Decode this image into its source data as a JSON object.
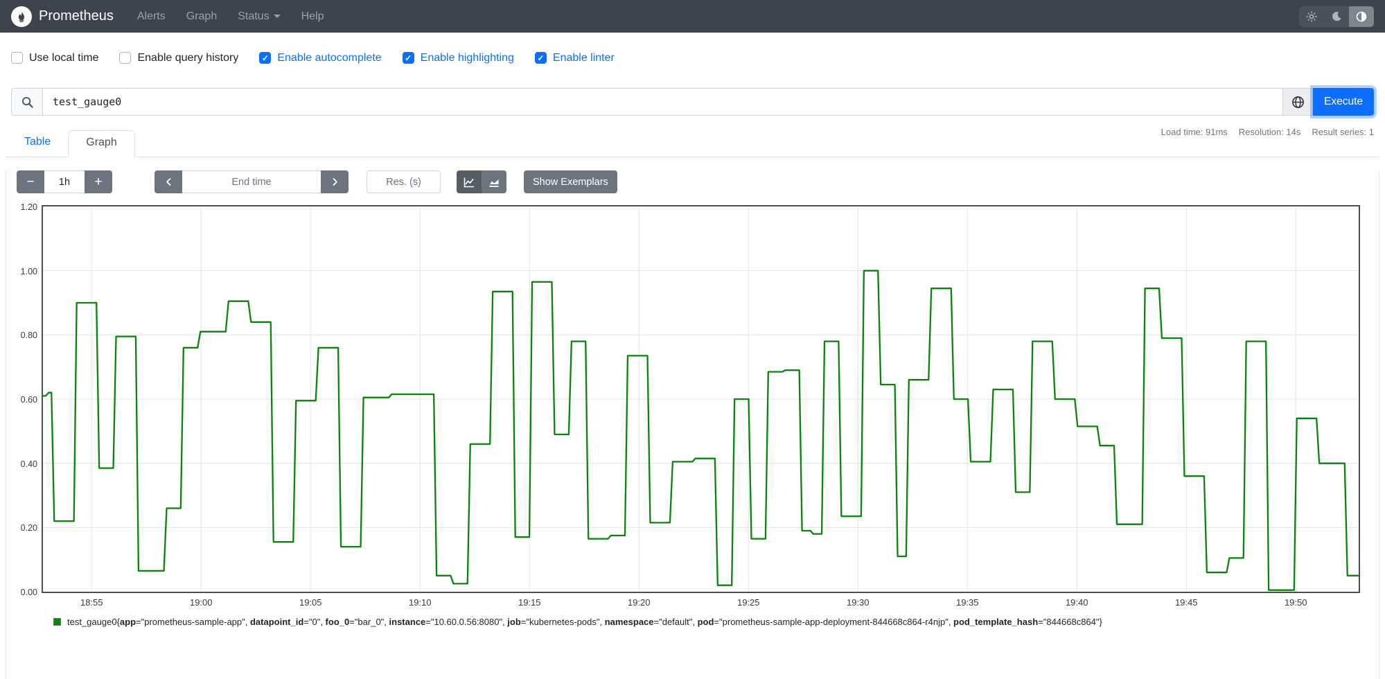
{
  "navbar": {
    "brand": "Prometheus",
    "items": [
      {
        "label": "Alerts",
        "caret": false
      },
      {
        "label": "Graph",
        "caret": false
      },
      {
        "label": "Status",
        "caret": true
      },
      {
        "label": "Help",
        "caret": false
      }
    ],
    "theme_toggle": {
      "options": [
        "light",
        "dark",
        "auto"
      ],
      "active": "auto"
    }
  },
  "options_bar": {
    "checkboxes": [
      {
        "label": "Use local time",
        "checked": false
      },
      {
        "label": "Enable query history",
        "checked": false
      },
      {
        "label": "Enable autocomplete",
        "checked": true
      },
      {
        "label": "Enable highlighting",
        "checked": true
      },
      {
        "label": "Enable linter",
        "checked": true
      }
    ]
  },
  "query_bar": {
    "value": "test_gauge0",
    "execute_label": "Execute"
  },
  "stats": {
    "load_time": "Load time: 91ms",
    "resolution": "Resolution: 14s",
    "result_series": "Result series: 1"
  },
  "tabs": [
    {
      "label": "Table",
      "active": false
    },
    {
      "label": "Graph",
      "active": true
    }
  ],
  "graph_controls": {
    "minus_label": "−",
    "plus_label": "+",
    "range_value": "1h",
    "end_time_placeholder": "End time",
    "res_placeholder": "Res. (s)",
    "show_exemplars_label": "Show Exemplars"
  },
  "chart_data": {
    "type": "line",
    "style": "stepped-gauge",
    "line_color": "#098409",
    "ylim": [
      0,
      1.2
    ],
    "yticks": [
      {
        "v": 0.0,
        "label": "0.00"
      },
      {
        "v": 0.2,
        "label": "0.20"
      },
      {
        "v": 0.4,
        "label": "0.40"
      },
      {
        "v": 0.6,
        "label": "0.60"
      },
      {
        "v": 0.8,
        "label": "0.80"
      },
      {
        "v": 1.0,
        "label": "1.00"
      },
      {
        "v": 1.2,
        "label": "1.20"
      }
    ],
    "xticks": [
      "18:55",
      "19:00",
      "19:05",
      "19:10",
      "19:15",
      "19:20",
      "19:25",
      "19:30",
      "19:35",
      "19:40",
      "19:45",
      "19:50"
    ],
    "xtick_start_frac": 0.037,
    "xtick_step_frac": 0.0832,
    "grid": true,
    "sample_interval_seconds": 14,
    "series": [
      {
        "name": "test_gauge0",
        "segments_value_samples": [
          [
            0.61,
            1
          ],
          [
            0.62,
            1
          ],
          [
            0.22,
            4
          ],
          [
            0.9,
            4
          ],
          [
            0.385,
            3
          ],
          [
            0.795,
            4
          ],
          [
            0.065,
            5
          ],
          [
            0.26,
            3
          ],
          [
            0.76,
            3
          ],
          [
            0.81,
            5
          ],
          [
            0.905,
            4
          ],
          [
            0.84,
            4
          ],
          [
            0.155,
            4
          ],
          [
            0.595,
            4
          ],
          [
            0.76,
            4
          ],
          [
            0.14,
            4
          ],
          [
            0.605,
            5
          ],
          [
            0.615,
            8
          ],
          [
            0.05,
            3
          ],
          [
            0.025,
            3
          ],
          [
            0.46,
            4
          ],
          [
            0.935,
            4
          ],
          [
            0.17,
            3
          ],
          [
            0.965,
            4
          ],
          [
            0.49,
            3
          ],
          [
            0.78,
            3
          ],
          [
            0.165,
            4
          ],
          [
            0.175,
            3
          ],
          [
            0.735,
            4
          ],
          [
            0.215,
            4
          ],
          [
            0.405,
            4
          ],
          [
            0.415,
            4
          ],
          [
            0.02,
            3
          ],
          [
            0.6,
            3
          ],
          [
            0.165,
            3
          ],
          [
            0.685,
            3
          ],
          [
            0.69,
            3
          ],
          [
            0.19,
            2
          ],
          [
            0.18,
            2
          ],
          [
            0.78,
            3
          ],
          [
            0.235,
            4
          ],
          [
            1.0,
            3
          ],
          [
            0.645,
            3
          ],
          [
            0.11,
            2
          ],
          [
            0.66,
            4
          ],
          [
            0.945,
            4
          ],
          [
            0.6,
            3
          ],
          [
            0.405,
            4
          ],
          [
            0.63,
            4
          ],
          [
            0.31,
            3
          ],
          [
            0.78,
            4
          ],
          [
            0.6,
            4
          ],
          [
            0.515,
            4
          ],
          [
            0.455,
            3
          ],
          [
            0.21,
            5
          ],
          [
            0.945,
            3
          ],
          [
            0.79,
            4
          ],
          [
            0.36,
            4
          ],
          [
            0.06,
            4
          ],
          [
            0.105,
            3
          ],
          [
            0.78,
            4
          ],
          [
            0.005,
            5
          ],
          [
            0.54,
            4
          ],
          [
            0.4,
            5
          ],
          [
            0.05,
            2
          ]
        ]
      }
    ]
  },
  "legend": {
    "metric": "test_gauge0",
    "swatch_color": "#098409",
    "labels": [
      {
        "name": "app",
        "value": "prometheus-sample-app"
      },
      {
        "name": "datapoint_id",
        "value": "0"
      },
      {
        "name": "foo_0",
        "value": "bar_0"
      },
      {
        "name": "instance",
        "value": "10.60.0.56:8080"
      },
      {
        "name": "job",
        "value": "kubernetes-pods"
      },
      {
        "name": "namespace",
        "value": "default"
      },
      {
        "name": "pod",
        "value": "prometheus-sample-app-deployment-844668c864-r4njp"
      },
      {
        "name": "pod_template_hash",
        "value": "844668c864"
      }
    ]
  }
}
